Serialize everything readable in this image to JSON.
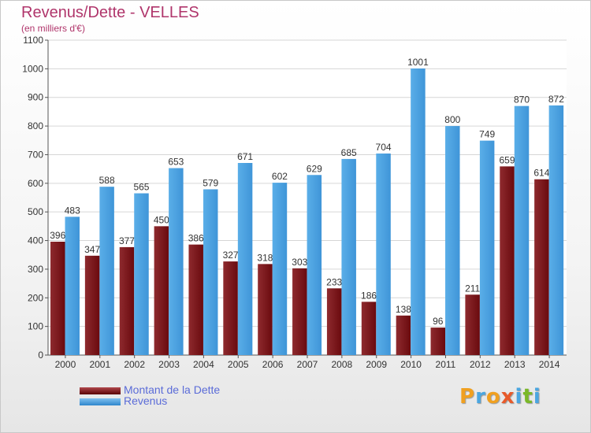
{
  "header": {
    "title": "Revenus/Dette - VELLES",
    "subtitle": "(en milliers d'€)"
  },
  "legend": {
    "items": [
      {
        "label": "Montant de la Dette",
        "color": "#7a0f14"
      },
      {
        "label": "Revenus",
        "color": "#4fa3e3"
      }
    ]
  },
  "logo": {
    "letters": [
      "P",
      "r",
      "o",
      "x",
      "i",
      "t",
      "i"
    ],
    "colors": [
      "#f0a020",
      "#4ba6e0",
      "#f0a020",
      "#e85a2a",
      "#4ba6e0",
      "#7ab828",
      "#4ba6e0"
    ]
  },
  "chart_data": {
    "type": "bar",
    "categories": [
      "2000",
      "2001",
      "2002",
      "2003",
      "2004",
      "2005",
      "2006",
      "2007",
      "2008",
      "2009",
      "2010",
      "2011",
      "2012",
      "2013",
      "2014"
    ],
    "series": [
      {
        "name": "Montant de la Dette",
        "color": "#7a0f14",
        "values": [
          396,
          347,
          377,
          450,
          386,
          327,
          318,
          303,
          233,
          186,
          138,
          96,
          211,
          659,
          614
        ]
      },
      {
        "name": "Revenus",
        "color": "#4fa3e3",
        "values": [
          483,
          588,
          565,
          653,
          579,
          671,
          602,
          629,
          685,
          704,
          1001,
          800,
          749,
          870,
          872
        ]
      }
    ],
    "ylim": [
      0,
      1100
    ],
    "yticks": [
      0,
      100,
      200,
      300,
      400,
      500,
      600,
      700,
      800,
      900,
      1000,
      1100
    ],
    "grid": true
  }
}
